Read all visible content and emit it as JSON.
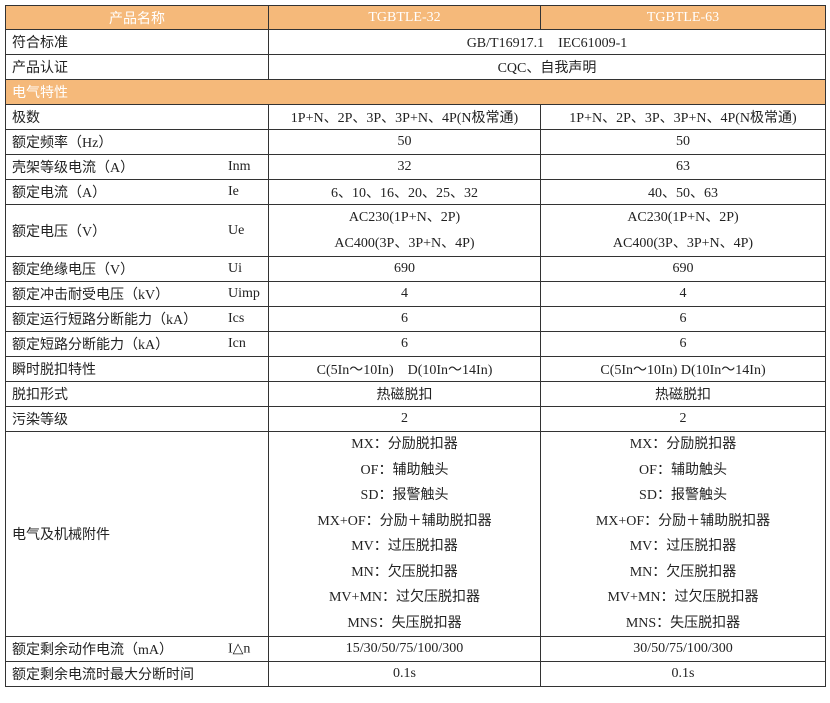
{
  "header": {
    "name": "产品名称",
    "model1": "TGBTLE-32",
    "model2": "TGBTLE-63"
  },
  "common_rows": [
    {
      "label": "符合标准",
      "value": "GB/T16917.1　IEC61009-1"
    },
    {
      "label": "产品认证",
      "value": "CQC、自我声明"
    }
  ],
  "section": "电气特性",
  "rows": [
    {
      "label": "极数",
      "symbol": "",
      "v1": [
        "1P+N、2P、3P、3P+N、4P(N极常通)"
      ],
      "v2": [
        "1P+N、2P、3P、3P+N、4P(N极常通)"
      ]
    },
    {
      "label": "额定频率（Hz）",
      "symbol": "",
      "v1": [
        "50"
      ],
      "v2": [
        "50"
      ]
    },
    {
      "label": "壳架等级电流（A）",
      "symbol": "Inm",
      "v1": [
        "32"
      ],
      "v2": [
        "63"
      ]
    },
    {
      "label": "额定电流（A）",
      "symbol": "Ie",
      "v1": [
        "6、10、16、20、25、32"
      ],
      "v2": [
        "40、50、63"
      ]
    },
    {
      "label": "额定电压（V）",
      "symbol": "Ue",
      "v1": [
        "AC230(1P+N、2P)",
        "AC400(3P、3P+N、4P)"
      ],
      "v2": [
        "AC230(1P+N、2P)",
        "AC400(3P、3P+N、4P)"
      ]
    },
    {
      "label": "额定绝缘电压（V）",
      "symbol": "Ui",
      "v1": [
        "690"
      ],
      "v2": [
        "690"
      ]
    },
    {
      "label": "额定冲击耐受电压（kV）",
      "symbol": "Uimp",
      "v1": [
        "4"
      ],
      "v2": [
        "4"
      ]
    },
    {
      "label": "额定运行短路分断能力（kA）",
      "symbol": "Ics",
      "v1": [
        "6"
      ],
      "v2": [
        "6"
      ]
    },
    {
      "label": "额定短路分断能力（kA）",
      "symbol": "Icn",
      "v1": [
        "6"
      ],
      "v2": [
        "6"
      ]
    },
    {
      "label": "瞬时脱扣特性",
      "symbol": "",
      "v1": [
        "C(5In～10In)　D(10In～14In)"
      ],
      "v2": [
        "C(5In～10In) D(10In～14In)"
      ]
    },
    {
      "label": "脱扣形式",
      "symbol": "",
      "v1": [
        "热磁脱扣"
      ],
      "v2": [
        "热磁脱扣"
      ]
    },
    {
      "label": "污染等级",
      "symbol": "",
      "v1": [
        "2"
      ],
      "v2": [
        "2"
      ]
    },
    {
      "label": "电气及机械附件",
      "symbol": "",
      "v1": [
        "MX：分励脱扣器",
        "OF：辅助触头",
        "SD：报警触头",
        "MX+OF：分励＋辅助脱扣器",
        "MV：过压脱扣器",
        "MN：欠压脱扣器",
        "MV+MN：过欠压脱扣器",
        "MNS：失压脱扣器"
      ],
      "v2": [
        "MX：分励脱扣器",
        "OF：辅助触头",
        "SD：报警触头",
        "MX+OF：分励＋辅助脱扣器",
        "MV：过压脱扣器",
        "MN：欠压脱扣器",
        "MV+MN：过欠压脱扣器",
        "MNS：失压脱扣器"
      ]
    },
    {
      "label": "额定剩余动作电流（mA）",
      "symbol": "I△n",
      "v1": [
        "15/30/50/75/100/300"
      ],
      "v2": [
        "30/50/75/100/300"
      ]
    },
    {
      "label": "额定剩余电流时最大分断时间",
      "symbol": "",
      "v1": [
        "0.1s"
      ],
      "v2": [
        "0.1s"
      ]
    }
  ],
  "colors": {
    "header_bg": "#f5b97a",
    "border": "#333333"
  }
}
